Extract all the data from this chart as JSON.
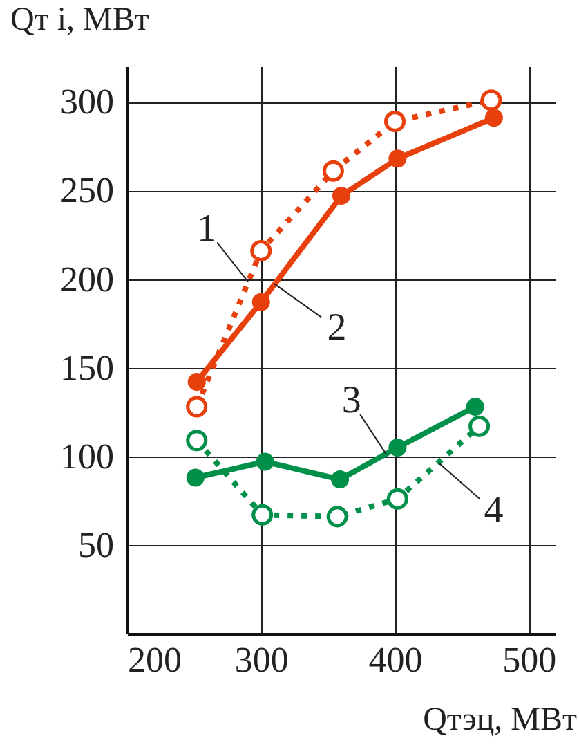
{
  "chart_data": {
    "type": "line",
    "xlabel": "Qтэц, МВт",
    "ylabel": "Qт i, МВт",
    "xlim": [
      200,
      520
    ],
    "ylim": [
      0,
      320
    ],
    "xticks": [
      200,
      300,
      400,
      500
    ],
    "yticks": [
      50,
      100,
      150,
      200,
      250,
      300
    ],
    "grid": true,
    "legend": false,
    "marker": "circle",
    "series": [
      {
        "name": "1",
        "color": "#e8400c",
        "line_style": "dotted",
        "x": [
          252,
          300,
          354,
          400,
          472
        ],
        "values": [
          128,
          216,
          261,
          289,
          301
        ]
      },
      {
        "name": "2",
        "color": "#e8400c",
        "line_style": "solid",
        "x": [
          252,
          300,
          360,
          402,
          474
        ],
        "values": [
          142,
          187,
          247,
          268,
          291
        ]
      },
      {
        "name": "3",
        "color": "#00904a",
        "line_style": "solid",
        "x": [
          251,
          303,
          359,
          402,
          460
        ],
        "values": [
          88,
          97,
          87,
          105,
          128
        ]
      },
      {
        "name": "4",
        "color": "#00904a",
        "line_style": "dotted",
        "x": [
          252,
          301,
          357,
          402,
          463
        ],
        "values": [
          109,
          67,
          66,
          76,
          117
        ]
      }
    ]
  }
}
